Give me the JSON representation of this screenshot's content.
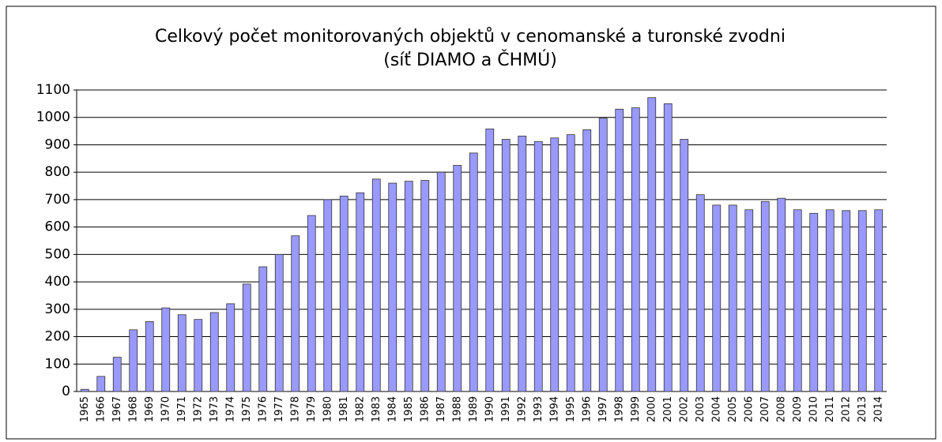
{
  "chart_data": {
    "type": "bar",
    "title": "Celkový počet monitorovaných objektů v cenomanské a turonské zvodni",
    "subtitle": "(síť DIAMO a ČHMÚ)",
    "categories": [
      "1965",
      "1966",
      "1967",
      "1968",
      "1969",
      "1970",
      "1971",
      "1972",
      "1973",
      "1974",
      "1975",
      "1976",
      "1977",
      "1978",
      "1979",
      "1980",
      "1981",
      "1982",
      "1983",
      "1984",
      "1985",
      "1986",
      "1987",
      "1988",
      "1989",
      "1990",
      "1991",
      "1992",
      "1993",
      "1994",
      "1995",
      "1996",
      "1997",
      "1998",
      "1999",
      "2000",
      "2001",
      "2002",
      "2003",
      "2004",
      "2005",
      "2006",
      "2007",
      "2008",
      "2009",
      "2010",
      "2011",
      "2012",
      "2013",
      "2014"
    ],
    "values": [
      8,
      55,
      125,
      225,
      255,
      305,
      280,
      263,
      288,
      320,
      392,
      455,
      500,
      568,
      642,
      700,
      713,
      725,
      775,
      760,
      767,
      770,
      800,
      825,
      870,
      958,
      920,
      932,
      912,
      925,
      937,
      955,
      997,
      1030,
      1035,
      1072,
      1050,
      920,
      718,
      680,
      680,
      663,
      693,
      705,
      663,
      650,
      663,
      660,
      660,
      663
    ],
    "color": "#9999ff",
    "ylim": [
      0,
      1100
    ],
    "yticks": [
      0,
      100,
      200,
      300,
      400,
      500,
      600,
      700,
      800,
      900,
      1000,
      1100
    ],
    "grid": true
  }
}
